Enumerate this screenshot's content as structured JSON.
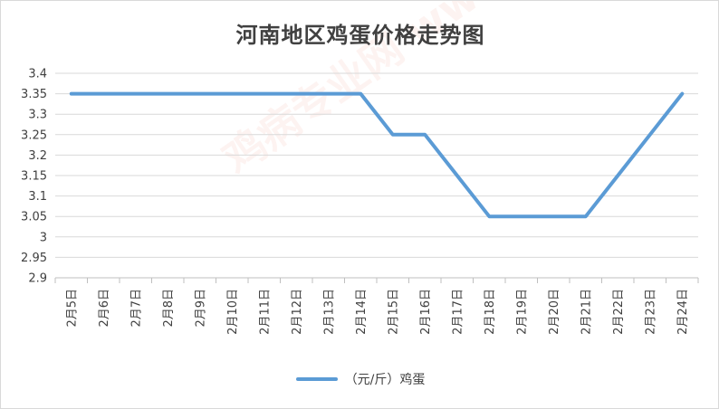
{
  "chart_data": {
    "type": "line",
    "title": "河南地区鸡蛋价格走势图",
    "categories": [
      "2月5日",
      "2月6日",
      "2月7日",
      "2月8日",
      "2月9日",
      "2月10日",
      "2月11日",
      "2月12日",
      "2月13日",
      "2月14日",
      "2月15日",
      "2月16日",
      "2月17日",
      "2月18日",
      "2月19日",
      "2月20日",
      "2月21日",
      "2月22日",
      "2月23日",
      "2月24日"
    ],
    "series": [
      {
        "name": "（元/斤）鸡蛋",
        "values": [
          3.35,
          3.35,
          3.35,
          3.35,
          3.35,
          3.35,
          3.35,
          3.35,
          3.35,
          3.35,
          3.25,
          3.25,
          3.15,
          3.05,
          3.05,
          3.05,
          3.05,
          3.15,
          3.25,
          3.35
        ],
        "color": "#5b9bd5"
      }
    ],
    "yticks": [
      "3.4",
      "3.35",
      "3.3",
      "3.25",
      "3.2",
      "3.15",
      "3.1",
      "3.05",
      "3",
      "2.95",
      "2.9"
    ],
    "ylim": [
      2.9,
      3.4
    ],
    "grid": true,
    "legend_position": "bottom"
  },
  "watermark_text": "鸡病专业网 www.jbzyw.com"
}
